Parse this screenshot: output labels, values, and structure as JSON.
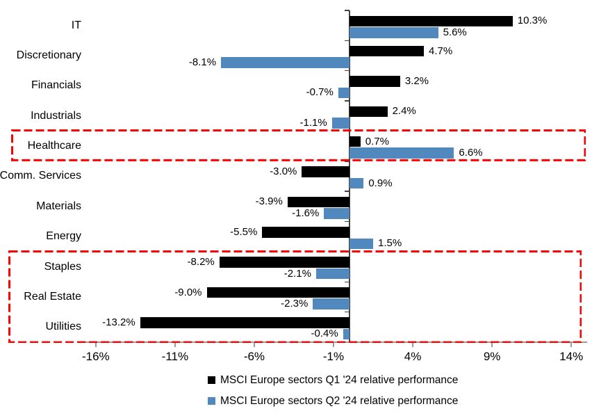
{
  "chart_data": {
    "type": "bar",
    "orientation": "horizontal",
    "title": "",
    "categories": [
      "IT",
      "Discretionary",
      "Financials",
      "Industrials",
      "Healthcare",
      "Comm. Services",
      "Materials",
      "Energy",
      "Staples",
      "Real Estate",
      "Utilities"
    ],
    "series": [
      {
        "name": "MSCI Europe sectors Q1 '24 relative performance",
        "color": "#000000",
        "values": [
          10.3,
          4.7,
          3.2,
          2.4,
          0.7,
          -3.0,
          -3.9,
          -5.5,
          -8.2,
          -9.0,
          -13.2
        ],
        "labels": [
          "10.3%",
          "4.7%",
          "3.2%",
          "2.4%",
          "0.7%",
          "-3.0%",
          "-3.9%",
          "-5.5%",
          "-8.2%",
          "-9.0%",
          "-13.2%"
        ]
      },
      {
        "name": "MSCI Europe sectors Q2 '24 relative performance",
        "color": "#5189BE",
        "values": [
          5.6,
          -8.1,
          -0.7,
          -1.1,
          6.6,
          0.9,
          -1.6,
          1.5,
          -2.1,
          -2.3,
          -0.4
        ],
        "labels": [
          "5.6%",
          "-8.1%",
          "-0.7%",
          "-1.1%",
          "6.6%",
          "0.9%",
          "-1.6%",
          "1.5%",
          "-2.1%",
          "-2.3%",
          "-0.4%"
        ]
      }
    ],
    "x_ticks": [
      -16,
      -11,
      -6,
      -1,
      4,
      9,
      14
    ],
    "x_tick_labels": [
      "-16%",
      "-11%",
      "-6%",
      "-1%",
      "4%",
      "9%",
      "14%"
    ],
    "xlim": [
      -17,
      15
    ],
    "grid": false,
    "legend_position": "bottom",
    "highlight_color": "#FF0000",
    "highlight_boxes": [
      {
        "start_row": 4,
        "end_row": 4
      },
      {
        "start_row": 8,
        "end_row": 10
      }
    ]
  }
}
